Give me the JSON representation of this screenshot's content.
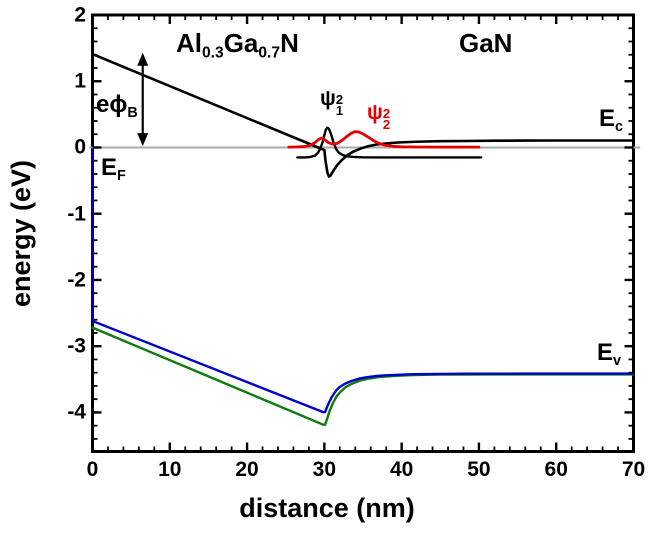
{
  "chart_data": {
    "type": "line",
    "title": "",
    "xlabel": "distance (nm)",
    "ylabel": "energy (eV)",
    "xlim": [
      0,
      70
    ],
    "ylim": [
      -4.59,
      2.0
    ],
    "x_ticks": [
      0,
      10,
      20,
      30,
      40,
      50,
      60,
      70
    ],
    "y_ticks": [
      2,
      1,
      0,
      -1,
      -2,
      -3,
      -4
    ],
    "x_minor_step": 2,
    "y_minor_step": 0.2,
    "grid": false,
    "frame_color": "#000000",
    "series": [
      {
        "name": "fermi-level",
        "color": "#a9a9a9",
        "width": 2,
        "points": [
          [
            -0.35,
            0
          ],
          [
            70.75,
            0
          ]
        ]
      },
      {
        "name": "valence-band-green",
        "color": "#0a7c0a",
        "width": 2.4,
        "points": [
          [
            0,
            -2.72
          ],
          [
            29.85,
            -4.185
          ],
          [
            30.1,
            -4.185
          ],
          [
            30.35,
            -4.1
          ],
          [
            30.7,
            -3.97
          ],
          [
            31.1,
            -3.86
          ],
          [
            31.6,
            -3.755
          ],
          [
            32.1,
            -3.685
          ],
          [
            32.8,
            -3.615
          ],
          [
            33.6,
            -3.565
          ],
          [
            34.6,
            -3.52
          ],
          [
            35.6,
            -3.492
          ],
          [
            36.9,
            -3.468
          ],
          [
            38.1,
            -3.456
          ],
          [
            39.6,
            -3.446
          ],
          [
            41.1,
            -3.438
          ],
          [
            43,
            -3.432
          ],
          [
            45,
            -3.429
          ],
          [
            48,
            -3.427
          ],
          [
            52,
            -3.426
          ],
          [
            56,
            -3.426
          ],
          [
            60,
            -3.426
          ],
          [
            65,
            -3.426
          ],
          [
            70,
            -3.426
          ]
        ]
      },
      {
        "name": "valence-band-blue",
        "color": "#0000cd",
        "width": 2.4,
        "points": [
          [
            0,
            -0.04
          ],
          [
            0,
            -2.62
          ],
          [
            29.85,
            -3.995
          ],
          [
            30.1,
            -3.995
          ],
          [
            30.3,
            -3.93
          ],
          [
            30.6,
            -3.85
          ],
          [
            31,
            -3.76
          ],
          [
            31.5,
            -3.67
          ],
          [
            32,
            -3.615
          ],
          [
            32.7,
            -3.565
          ],
          [
            33.5,
            -3.525
          ],
          [
            34.5,
            -3.49
          ],
          [
            35.5,
            -3.468
          ],
          [
            36.8,
            -3.45
          ],
          [
            38,
            -3.44
          ],
          [
            39.5,
            -3.432
          ],
          [
            41,
            -3.425
          ],
          [
            43,
            -3.421
          ],
          [
            45,
            -3.418
          ],
          [
            48,
            -3.416
          ],
          [
            52,
            -3.415
          ],
          [
            56,
            -3.414
          ],
          [
            60,
            -3.414
          ],
          [
            65,
            -3.414
          ],
          [
            70,
            -3.414
          ]
        ]
      },
      {
        "name": "conduction-band",
        "color": "#000000",
        "width": 2.6,
        "points": [
          [
            0,
            1.41
          ],
          [
            29.2,
            0.0
          ],
          [
            30,
            -0.04
          ],
          [
            30.15,
            -0.2
          ],
          [
            30.4,
            -0.38
          ],
          [
            30.6,
            -0.44
          ],
          [
            30.8,
            -0.425
          ],
          [
            31.2,
            -0.345
          ],
          [
            31.7,
            -0.26
          ],
          [
            32.3,
            -0.185
          ],
          [
            33,
            -0.115
          ],
          [
            33.8,
            -0.06
          ],
          [
            34.7,
            -0.015
          ],
          [
            35.7,
            0.02
          ],
          [
            36.8,
            0.045
          ],
          [
            38,
            0.062
          ],
          [
            39.5,
            0.075
          ],
          [
            41,
            0.083
          ],
          [
            43,
            0.09
          ],
          [
            45,
            0.094
          ],
          [
            48,
            0.098
          ],
          [
            52,
            0.102
          ],
          [
            56,
            0.104
          ],
          [
            60,
            0.105
          ],
          [
            65,
            0.105
          ],
          [
            70,
            0.105
          ]
        ]
      },
      {
        "name": "psi1-squared",
        "color": "#000000",
        "width": 2.4,
        "points": [
          [
            26.5,
            -0.15
          ],
          [
            27.5,
            -0.15
          ],
          [
            28.2,
            -0.142
          ],
          [
            28.8,
            -0.122
          ],
          [
            29.2,
            -0.075
          ],
          [
            29.5,
            -0.01
          ],
          [
            29.8,
            0.09
          ],
          [
            30.0,
            0.19
          ],
          [
            30.2,
            0.272
          ],
          [
            30.4,
            0.298
          ],
          [
            30.6,
            0.28
          ],
          [
            30.9,
            0.19
          ],
          [
            31.2,
            0.07
          ],
          [
            31.5,
            -0.02
          ],
          [
            31.9,
            -0.082
          ],
          [
            32.4,
            -0.115
          ],
          [
            33,
            -0.133
          ],
          [
            33.8,
            -0.143
          ],
          [
            35,
            -0.148
          ],
          [
            37,
            -0.15
          ],
          [
            40,
            -0.15
          ],
          [
            45,
            -0.15
          ],
          [
            50.3,
            -0.15
          ]
        ]
      },
      {
        "name": "psi2-squared",
        "color": "#e60000",
        "width": 2.8,
        "points": [
          [
            25.4,
            0.005
          ],
          [
            26.5,
            0.008
          ],
          [
            27.5,
            0.015
          ],
          [
            28.2,
            0.035
          ],
          [
            28.8,
            0.075
          ],
          [
            29.3,
            0.125
          ],
          [
            29.7,
            0.142
          ],
          [
            30.1,
            0.115
          ],
          [
            30.5,
            0.075
          ],
          [
            31,
            0.052
          ],
          [
            31.6,
            0.058
          ],
          [
            32.2,
            0.1
          ],
          [
            32.8,
            0.155
          ],
          [
            33.4,
            0.21
          ],
          [
            33.9,
            0.238
          ],
          [
            34.4,
            0.235
          ],
          [
            35,
            0.205
          ],
          [
            35.7,
            0.155
          ],
          [
            36.4,
            0.1
          ],
          [
            37.1,
            0.06
          ],
          [
            37.9,
            0.033
          ],
          [
            38.8,
            0.018
          ],
          [
            40,
            0.01
          ],
          [
            42,
            0.007
          ],
          [
            45,
            0.006
          ],
          [
            50,
            0.006
          ]
        ]
      }
    ],
    "annotations": {
      "barrier_arrow": {
        "x": 6.5,
        "y_from": 0.02,
        "y_to": 1.43,
        "color": "#000000"
      }
    }
  },
  "labels": {
    "region_algan": {
      "pre": "Al",
      "sub1": "0.3",
      "mid": "Ga",
      "sub2": "0.7",
      "post": "N"
    },
    "region_gan": "GaN",
    "fermi": {
      "base": "E",
      "sub": "F"
    },
    "conduction": {
      "base": "E",
      "sub": "c"
    },
    "valence": {
      "base": "E",
      "sub": "v"
    },
    "barrier": {
      "pre": "e",
      "phi": "ϕ",
      "sub": "B"
    },
    "psi1": {
      "base": "ψ",
      "sup": "2",
      "sub": "1"
    },
    "psi2": {
      "base": "ψ",
      "sup": "2",
      "sub": "2"
    }
  }
}
